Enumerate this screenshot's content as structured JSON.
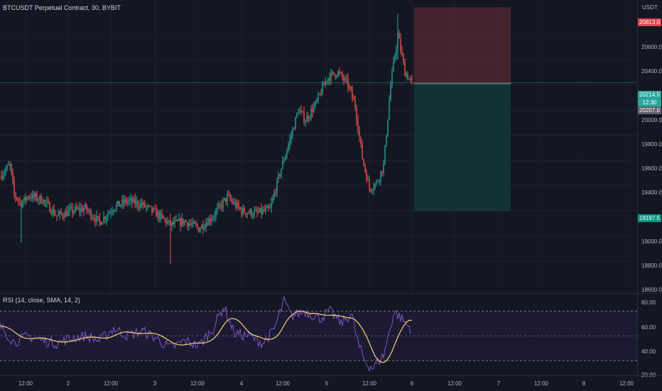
{
  "symbol_legend": "BTCUSDT Perpetual Contract, 30, BYBIT",
  "rsi_legend": "RSI (14, close, SMA, 14, 2)",
  "price_scale": {
    "unit": "USDT",
    "ticks": [
      "20600.0",
      "20400.0",
      "20000.0",
      "19800.0",
      "19600.0",
      "19400.0",
      "19000.0",
      "18800.0",
      "18600.0"
    ],
    "stop_label": "20813.0",
    "last_price_label": "20214.5",
    "countdown_label": "12:30",
    "entry_label": "20207.0",
    "target_label": "19197.5"
  },
  "rsi_scale": {
    "ticks": [
      "80.00",
      "60.00",
      "40.00",
      "20.00"
    ]
  },
  "time_axis": {
    "labels": [
      "12:00",
      "2",
      "12:00",
      "3",
      "12:00",
      "4",
      "12:00",
      "5",
      "12:00",
      "6",
      "12:00",
      "7",
      "12:00",
      "8",
      "12:00"
    ]
  },
  "colors": {
    "background": "#131722",
    "up_candle": "#26a69a",
    "down_candle": "#ef5350",
    "stop_zone": "#4a2530",
    "target_zone": "#14353a",
    "rsi_line": "#7e57c2",
    "rsi_ma": "#f5d76e",
    "rsi_band": "#1f1a36"
  },
  "chart_data": {
    "type": "candlestick",
    "ylim": [
      18550,
      20870
    ],
    "position": {
      "kind": "short",
      "entry": 20207.0,
      "stop": 20813.0,
      "target": 19197.5
    },
    "rsi": {
      "upper_band": 70,
      "lower_band": 30,
      "ylim": [
        18,
        84
      ]
    }
  }
}
